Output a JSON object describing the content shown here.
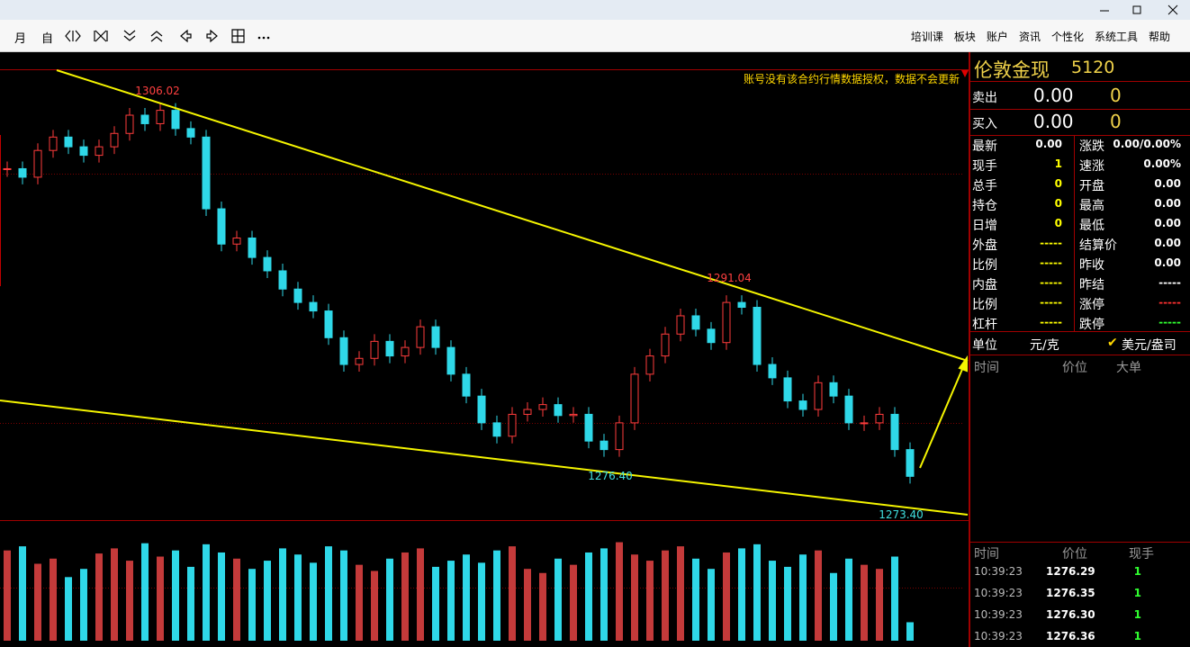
{
  "toolbar": {
    "left": [
      "月",
      "自"
    ],
    "menu": [
      "培训课",
      "板块",
      "账户",
      "资讯",
      "个性化",
      "系统工具",
      "帮助"
    ]
  },
  "notice": "账号没有该合约行情数据授权，数据不会更新",
  "chart_data": {
    "type": "candlestick",
    "close": [
      1300.9,
      1300.2,
      1302.4,
      1303.5,
      1302.7,
      1302.0,
      1302.7,
      1303.8,
      1305.3,
      1304.6,
      1305.7,
      1304.2,
      1303.5,
      1297.6,
      1294.7,
      1295.2,
      1293.6,
      1292.5,
      1291.0,
      1289.9,
      1289.2,
      1287.0,
      1284.8,
      1285.3,
      1286.7,
      1285.5,
      1286.2,
      1287.9,
      1286.2,
      1284.0,
      1282.2,
      1280.0,
      1278.9,
      1280.7,
      1281.1,
      1281.5,
      1280.6,
      1280.7,
      1278.5,
      1277.8,
      1280.0,
      1284.0,
      1285.5,
      1287.3,
      1288.8,
      1287.7,
      1286.6,
      1289.9,
      1289.5,
      1284.8,
      1283.7,
      1281.8,
      1281.1,
      1283.3,
      1282.2,
      1280.0,
      1280.0,
      1280.7,
      1277.8,
      1275.6
    ],
    "volume": [
      88,
      92,
      75,
      80,
      62,
      70,
      85,
      90,
      78,
      95,
      82,
      88,
      72,
      94,
      86,
      80,
      70,
      78,
      90,
      84,
      76,
      92,
      88,
      74,
      68,
      80,
      86,
      90,
      72,
      78,
      84,
      76,
      88,
      92,
      70,
      66,
      80,
      74,
      86,
      90,
      96,
      84,
      78,
      88,
      92,
      80,
      70,
      86,
      90,
      94,
      78,
      72,
      84,
      88,
      66,
      80,
      74,
      70,
      82,
      18
    ],
    "ylim": [
      1272,
      1309
    ],
    "vlim": [
      0,
      100
    ],
    "annotations": [
      "1306.02",
      "1291.04",
      "1276.40",
      "1273.40"
    ]
  },
  "quote": {
    "name": "伦敦金现",
    "code": "5120",
    "book": [
      [
        "卖出",
        "0.00",
        "0"
      ],
      [
        "买入",
        "0.00",
        "0"
      ]
    ],
    "stats": [
      [
        "最新",
        "0.00",
        "涨跌",
        "0.00/0.00%"
      ],
      [
        "现手",
        "1",
        "速涨",
        "0.00%"
      ],
      [
        "总手",
        "0",
        "开盘",
        "0.00"
      ],
      [
        "持仓",
        "0",
        "最高",
        "0.00"
      ],
      [
        "日增",
        "0",
        "最低",
        "0.00"
      ],
      [
        "外盘",
        "-----",
        "结算价",
        "0.00"
      ],
      [
        "比例",
        "-----",
        "昨收",
        "0.00"
      ],
      [
        "内盘",
        "-----",
        "昨结",
        "-----"
      ],
      [
        "比例",
        "-----",
        "涨停",
        "-----"
      ],
      [
        "杠杆",
        "-----",
        "跌停",
        "-----"
      ]
    ],
    "unit": [
      "单位",
      "元/克",
      "美元/盎司"
    ],
    "big_header": [
      "时间",
      "价位",
      "大单"
    ],
    "trade_header": [
      "时间",
      "价位",
      "现手"
    ],
    "trades": [
      [
        "10:39:23",
        "1276.29",
        "1"
      ],
      [
        "10:39:23",
        "1276.35",
        "1"
      ],
      [
        "10:39:23",
        "1276.30",
        "1"
      ],
      [
        "10:39:23",
        "1276.36",
        "1"
      ]
    ]
  }
}
